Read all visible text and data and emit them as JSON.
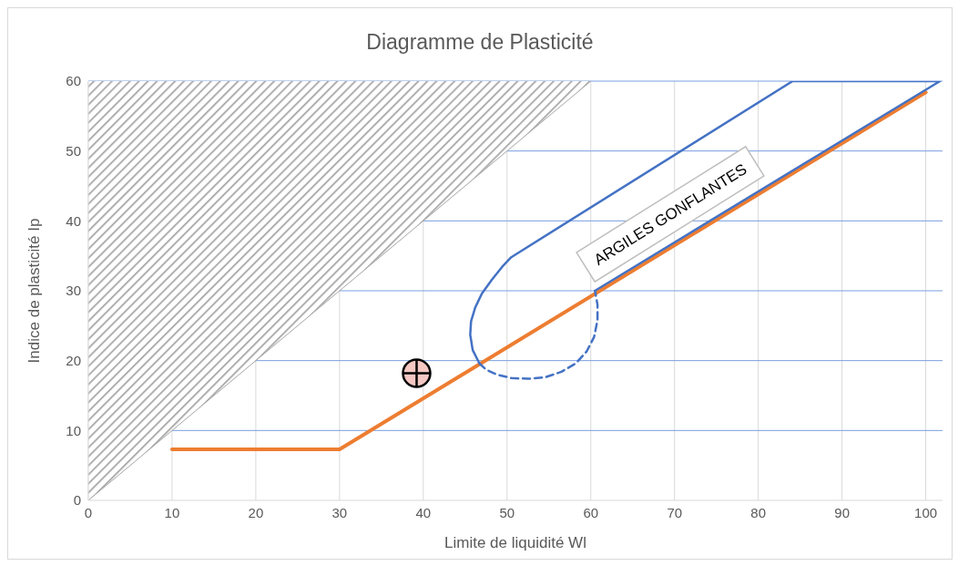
{
  "chart_data": {
    "type": "line",
    "title": "Diagramme de Plasticité",
    "xlabel": "Limite de liquidité Wl",
    "ylabel": "Indice de plasticité Ip",
    "xlim": [
      0,
      102
    ],
    "xticks": [
      0,
      10,
      20,
      30,
      40,
      50,
      60,
      70,
      80,
      90,
      100
    ],
    "ylim": [
      0,
      60
    ],
    "yticks": [
      0,
      10,
      20,
      30,
      40,
      50,
      60
    ],
    "grid": true,
    "legend": false,
    "series": [
      {
        "type": "line",
        "color": "#a6a6a6",
        "x": [
          0,
          60
        ],
        "values": [
          0,
          60
        ],
        "lower": [
          0,
          60
        ],
        "upper": [
          60,
          60
        ],
        "marker": "none",
        "line_style": "solid"
      },
      {
        "color": "#ed7d31",
        "x": [
          10,
          30,
          100
        ],
        "values": [
          7.3,
          7.3,
          58.4
        ],
        "marker": "none",
        "line_style": "solid"
      },
      {
        "color": "#4472c4",
        "x": [
          46.7,
          45.9,
          45.6,
          45.7,
          46.2,
          47,
          48.2,
          49.4,
          50.5,
          84.1,
          101.7,
          60.5
        ],
        "values": [
          19.6,
          21.5,
          23.7,
          25.6,
          27.6,
          29.6,
          31.6,
          33.4,
          34.8,
          60,
          60,
          30
        ],
        "marker": "none",
        "line_style": "solid"
      },
      {
        "color": "#4472c4",
        "x": [
          46.7,
          47.5,
          48.8,
          50.5,
          52.5,
          54.5,
          56.5,
          58.2,
          59.5,
          60.4,
          60.8,
          60.8,
          60.5
        ],
        "values": [
          19.6,
          18.7,
          18,
          17.5,
          17.4,
          17.6,
          18.4,
          19.6,
          21.3,
          23.4,
          25.8,
          28,
          30
        ],
        "marker": "none",
        "line_style": "dashed"
      },
      {
        "type": "scatter",
        "color": "#f4c7c3",
        "x": [
          39.2
        ],
        "values": [
          18.2
        ],
        "marker": "circle"
      }
    ],
    "annotations": [
      "ARGILES GONFLANTES"
    ]
  }
}
